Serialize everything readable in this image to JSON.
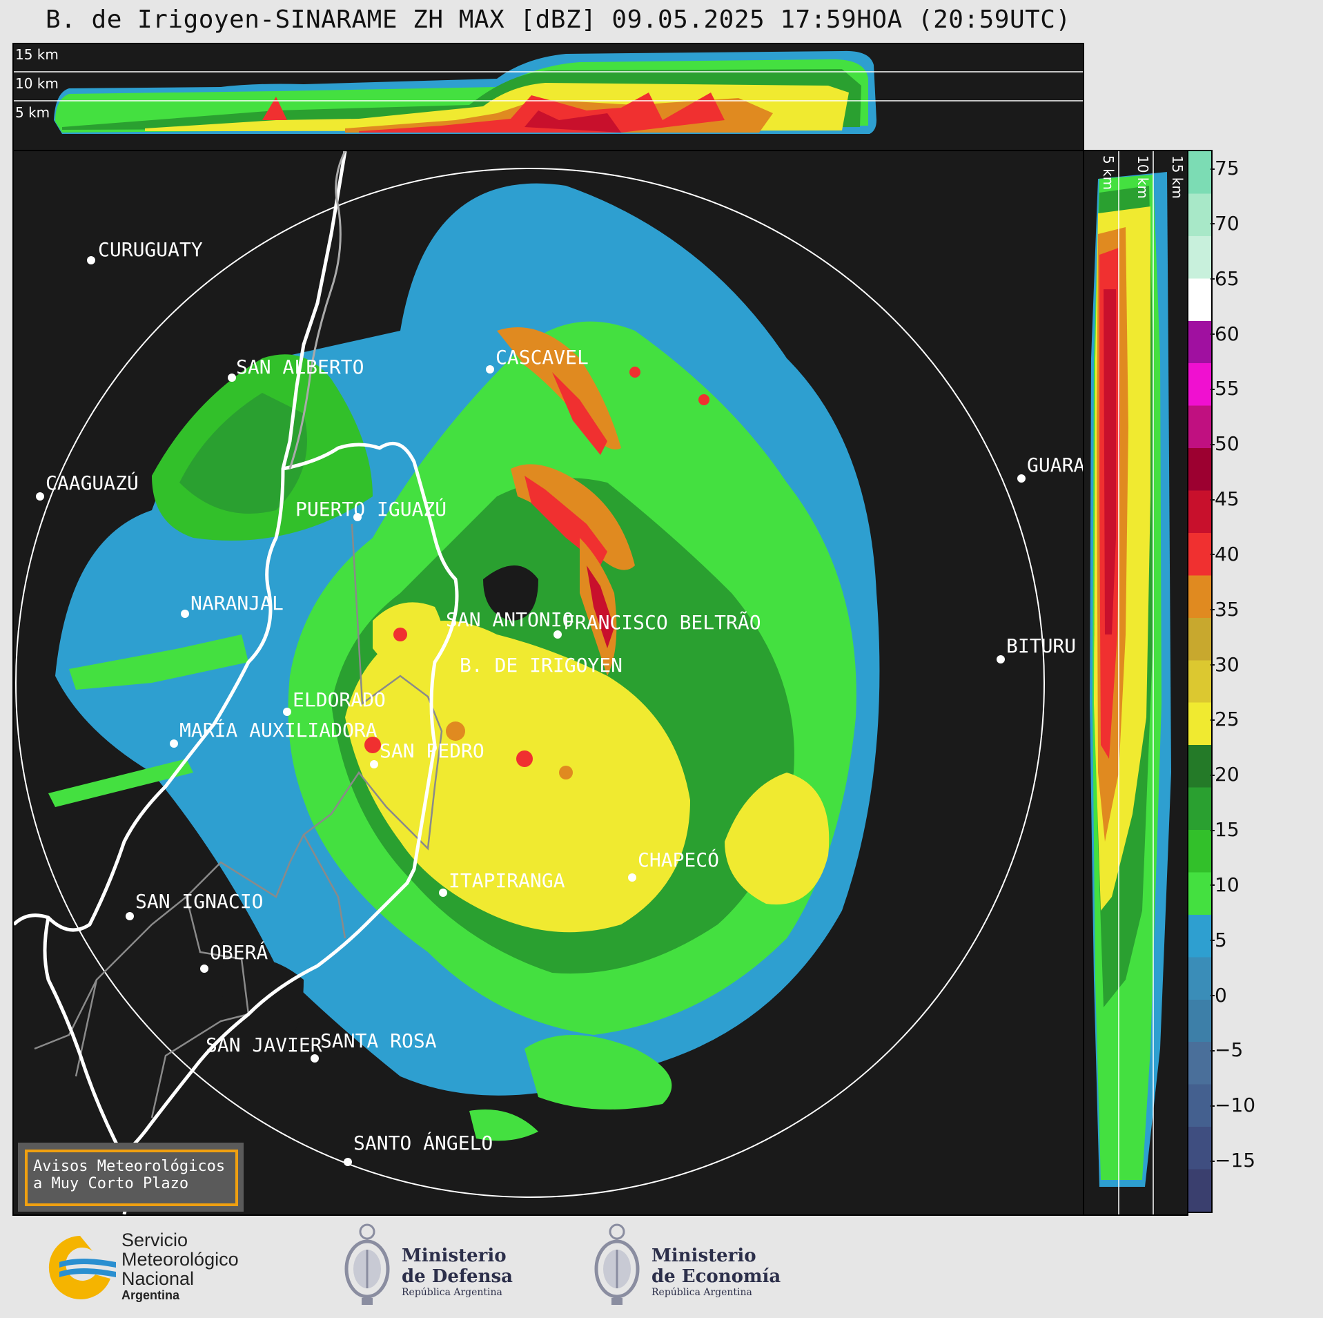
{
  "title": "B. de Irigoyen-SINARAME ZH MAX [dBZ] 09.05.2025 17:59HOA (20:59UTC)",
  "top_panel": {
    "altitude_labels": [
      "15 km",
      "10 km",
      "5 km"
    ]
  },
  "side_panel": {
    "altitude_labels": [
      "5 km",
      "10 km",
      "15 km"
    ]
  },
  "colorbar": {
    "unit": "dBZ",
    "ticks": [
      "75",
      "70",
      "65",
      "60",
      "55",
      "50",
      "45",
      "40",
      "35",
      "30",
      "25",
      "20",
      "15",
      "10",
      "5",
      "0",
      "−5",
      "−10",
      "−15"
    ],
    "colors": [
      "#3a3f6e",
      "#3f4e80",
      "#44608f",
      "#4a6f9a",
      "#3d7fa8",
      "#3a8db8",
      "#2e9fd0",
      "#44e040",
      "#32c02a",
      "#2aa030",
      "#247a28",
      "#f0ea30",
      "#dcc830",
      "#c8a82e",
      "#e08a20",
      "#f03030",
      "#c8102c",
      "#9c0030",
      "#c01080",
      "#f010d0",
      "#a010a0",
      "#ffffff",
      "#c8f0dc",
      "#a8e8c8",
      "#7cdcb4"
    ]
  },
  "cities": [
    {
      "name": "CURUGUATY"
    },
    {
      "name": "SAN ALBERTO"
    },
    {
      "name": "CASCAVEL"
    },
    {
      "name": "CAAGUAZÚ"
    },
    {
      "name": "GUARA"
    },
    {
      "name": "PUERTO IGUAZÚ"
    },
    {
      "name": "NARANJAL"
    },
    {
      "name": "SAN ANTONIO"
    },
    {
      "name": "FRANCISCO BELTRÃO"
    },
    {
      "name": "BITURU"
    },
    {
      "name": "B. DE IRIGOYEN"
    },
    {
      "name": "ELDORADO"
    },
    {
      "name": "MARÍA AUXILIADORA"
    },
    {
      "name": "SAN PEDRO"
    },
    {
      "name": "ITAPIRANGA"
    },
    {
      "name": "CHAPECÓ"
    },
    {
      "name": "SAN IGNACIO"
    },
    {
      "name": "OBERÁ"
    },
    {
      "name": "SAN JAVIER"
    },
    {
      "name": "SANTA ROSA"
    },
    {
      "name": "SANTO ÁNGELO"
    }
  ],
  "warning_box": {
    "line1": "Avisos Meteorológicos",
    "line2": "a Muy Corto Plazo"
  },
  "logos": {
    "smn": {
      "line1": "Servicio",
      "line2": "Meteorológico",
      "line3": "Nacional",
      "line4": "Argentina"
    },
    "defensa": {
      "line1": "Ministerio",
      "line2": "de Defensa",
      "line3": "República Argentina"
    },
    "economia": {
      "line1": "Ministerio",
      "line2": "de Economía",
      "line3": "República Argentina"
    }
  },
  "palette": {
    "border": "#ffffff",
    "background": "#1a1a1a",
    "accent_orange": "#f0a010",
    "smn_blue": "#2a8fd0",
    "smn_yellow": "#f5b400"
  }
}
